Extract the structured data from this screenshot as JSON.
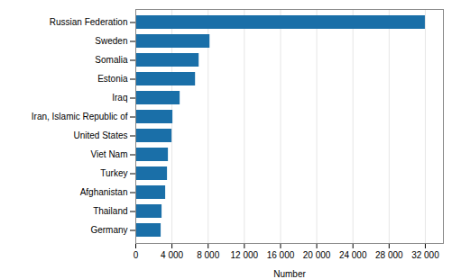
{
  "chart_data": {
    "type": "bar",
    "orientation": "horizontal",
    "categories": [
      "Germany",
      "Thailand",
      "Afghanistan",
      "Turkey",
      "Viet Nam",
      "United States",
      "Iran, Islamic Republic of",
      "Iraq",
      "Estonia",
      "Somalia",
      "Sweden",
      "Russian Federation"
    ],
    "values": [
      2800,
      2900,
      3300,
      3500,
      3600,
      4000,
      4100,
      4900,
      6600,
      7000,
      8200,
      32000
    ],
    "color": "#1a6fa8",
    "xlabel": "Number",
    "xlim": [
      0,
      34000
    ],
    "xticks": [
      0,
      {
        "value": 4000,
        "label": "4 000"
      },
      {
        "value": 8000,
        "label": "8 000"
      },
      {
        "value": 12000,
        "label": "12 000"
      },
      {
        "value": 16000,
        "label": "16 000"
      },
      {
        "value": 20000,
        "label": "20 000"
      },
      {
        "value": 24000,
        "label": "24 000"
      },
      {
        "value": 28000,
        "label": "28 000"
      },
      {
        "value": 32000,
        "label": "32 000"
      }
    ],
    "grid": true
  }
}
